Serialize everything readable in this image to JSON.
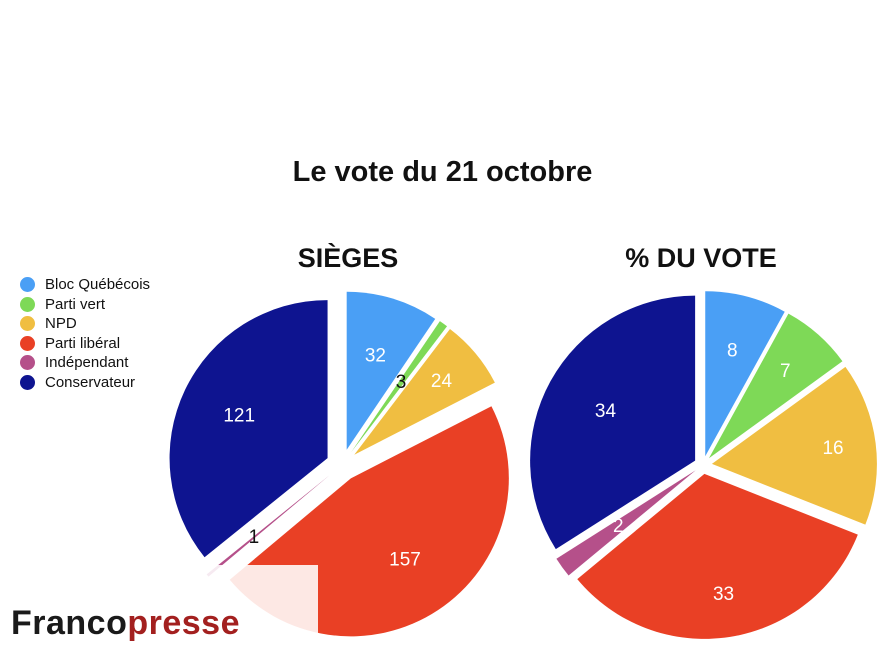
{
  "title": "Le vote du 21 octobre",
  "parties": [
    {
      "name": "Bloc Québécois",
      "color": "#4a9ff5"
    },
    {
      "name": "Parti vert",
      "color": "#7ed957"
    },
    {
      "name": "NPD",
      "color": "#f0be41"
    },
    {
      "name": "Parti libéral",
      "color": "#e94025"
    },
    {
      "name": "Indépendant",
      "color": "#b5508a"
    },
    {
      "name": "Conservateur",
      "color": "#0e1490"
    }
  ],
  "brand": {
    "part1": "Franco",
    "part2": "presse"
  },
  "chart_data": [
    {
      "type": "pie",
      "title": "SIÈGES",
      "categories": [
        "Bloc Québécois",
        "Parti vert",
        "NPD",
        "Parti libéral",
        "Indépendant",
        "Conservateur"
      ],
      "values": [
        32,
        3,
        24,
        157,
        1,
        121
      ],
      "labels": [
        "32",
        "3",
        "24",
        "157",
        "1",
        "121"
      ]
    },
    {
      "type": "pie",
      "title": "% DU VOTE",
      "categories": [
        "Bloc Québécois",
        "Parti vert",
        "NPD",
        "Parti libéral",
        "Indépendant",
        "Conservateur"
      ],
      "values": [
        8,
        7,
        16,
        33,
        2,
        34
      ],
      "labels": [
        "8",
        "7",
        "16",
        "33",
        "2",
        "34"
      ]
    }
  ]
}
